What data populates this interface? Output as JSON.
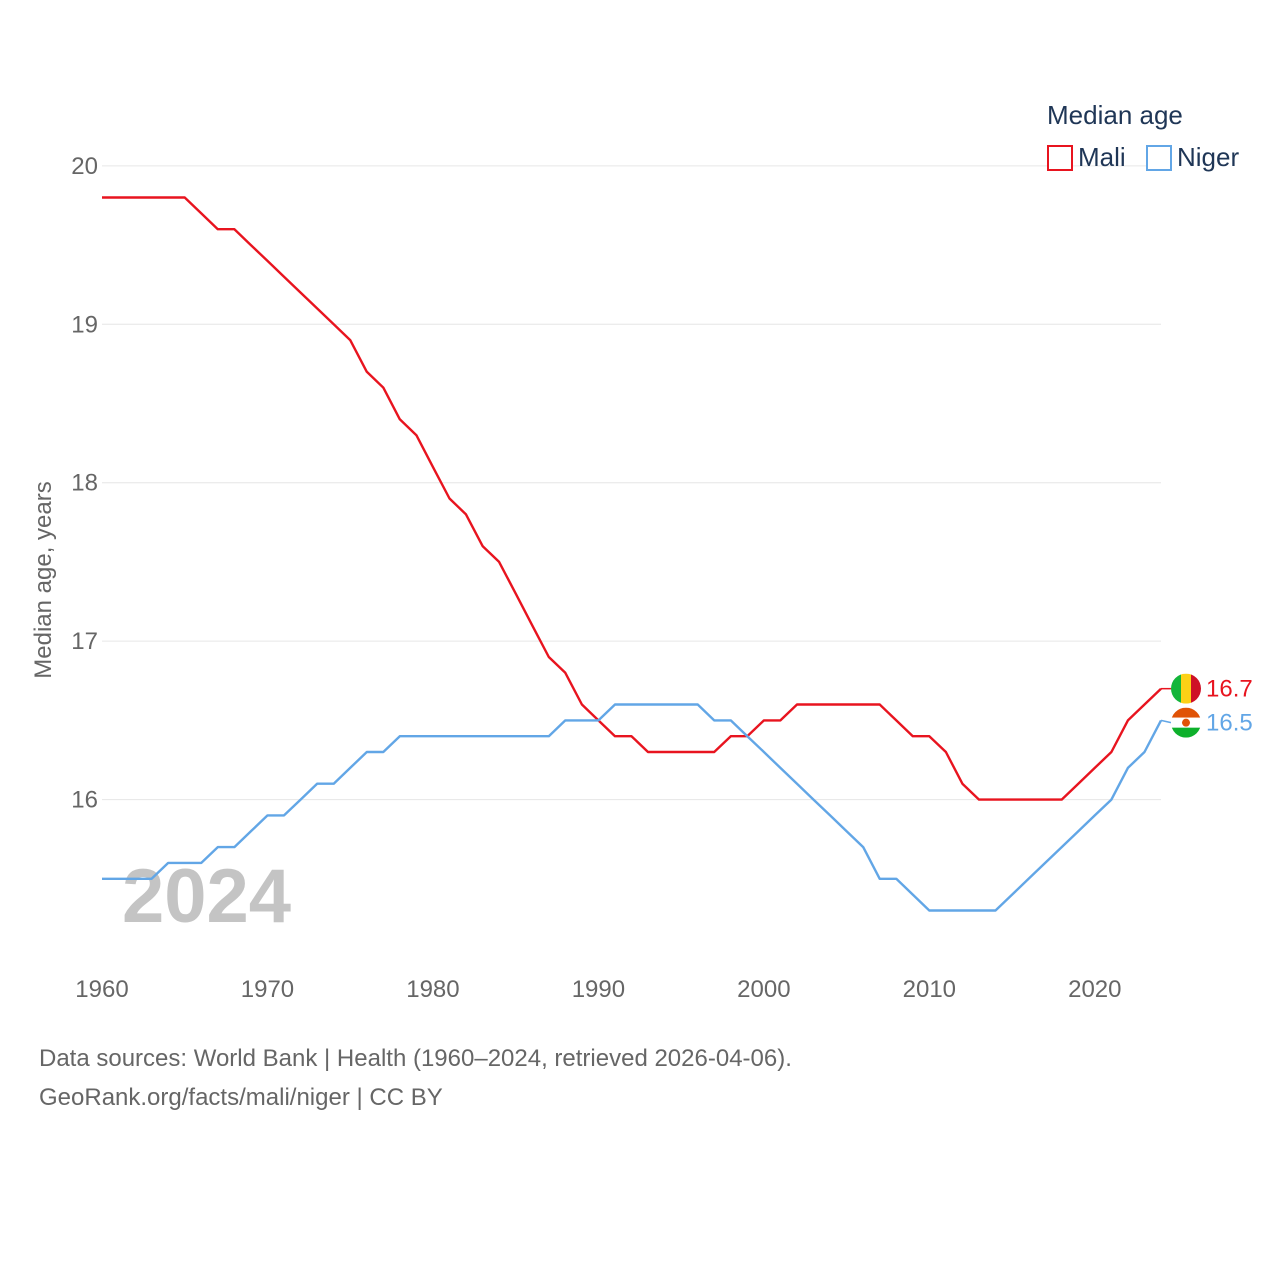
{
  "chart_data": {
    "type": "line",
    "ylabel": "Median age, years",
    "ylim": [
      15.0,
      20.1
    ],
    "xlim": [
      1960,
      2024
    ],
    "yticks": [
      16,
      17,
      18,
      19,
      20
    ],
    "xticks": [
      1960,
      1970,
      1980,
      1990,
      2000,
      2010,
      2020
    ],
    "year_watermark": "2024",
    "legend": {
      "title": "Median age",
      "position": "top-right"
    },
    "start_year": 1960,
    "series": [
      {
        "name": "Mali",
        "color": "#e8141f",
        "end_label": "16.7",
        "flag": "mali-flag-icon",
        "values": [
          19.8,
          19.8,
          19.8,
          19.8,
          19.8,
          19.8,
          19.7,
          19.6,
          19.6,
          19.5,
          19.4,
          19.3,
          19.2,
          19.1,
          19.0,
          18.9,
          18.7,
          18.6,
          18.4,
          18.3,
          18.1,
          17.9,
          17.8,
          17.6,
          17.5,
          17.3,
          17.1,
          16.9,
          16.8,
          16.6,
          16.5,
          16.4,
          16.4,
          16.3,
          16.3,
          16.3,
          16.3,
          16.3,
          16.4,
          16.4,
          16.5,
          16.5,
          16.6,
          16.6,
          16.6,
          16.6,
          16.6,
          16.6,
          16.5,
          16.4,
          16.4,
          16.3,
          16.1,
          16.0,
          16.0,
          16.0,
          16.0,
          16.0,
          16.0,
          16.1,
          16.2,
          16.3,
          16.5,
          16.6,
          16.7
        ]
      },
      {
        "name": "Niger",
        "color": "#62a6e6",
        "end_label": "16.5",
        "flag": "niger-flag-icon",
        "values": [
          15.5,
          15.5,
          15.5,
          15.5,
          15.6,
          15.6,
          15.6,
          15.7,
          15.7,
          15.8,
          15.9,
          15.9,
          16.0,
          16.1,
          16.1,
          16.2,
          16.3,
          16.3,
          16.4,
          16.4,
          16.4,
          16.4,
          16.4,
          16.4,
          16.4,
          16.4,
          16.4,
          16.4,
          16.5,
          16.5,
          16.5,
          16.6,
          16.6,
          16.6,
          16.6,
          16.6,
          16.6,
          16.5,
          16.5,
          16.4,
          16.3,
          16.2,
          16.1,
          16.0,
          15.9,
          15.8,
          15.7,
          15.5,
          15.5,
          15.4,
          15.3,
          15.3,
          15.3,
          15.3,
          15.3,
          15.4,
          15.5,
          15.6,
          15.7,
          15.8,
          15.9,
          16.0,
          16.2,
          16.3,
          16.5
        ]
      }
    ]
  },
  "footer": {
    "sources": "Data sources: World Bank | Health (1960–2024, retrieved 2026-04-06).",
    "credit": "GeoRank.org/facts/mali/niger | CC BY"
  }
}
